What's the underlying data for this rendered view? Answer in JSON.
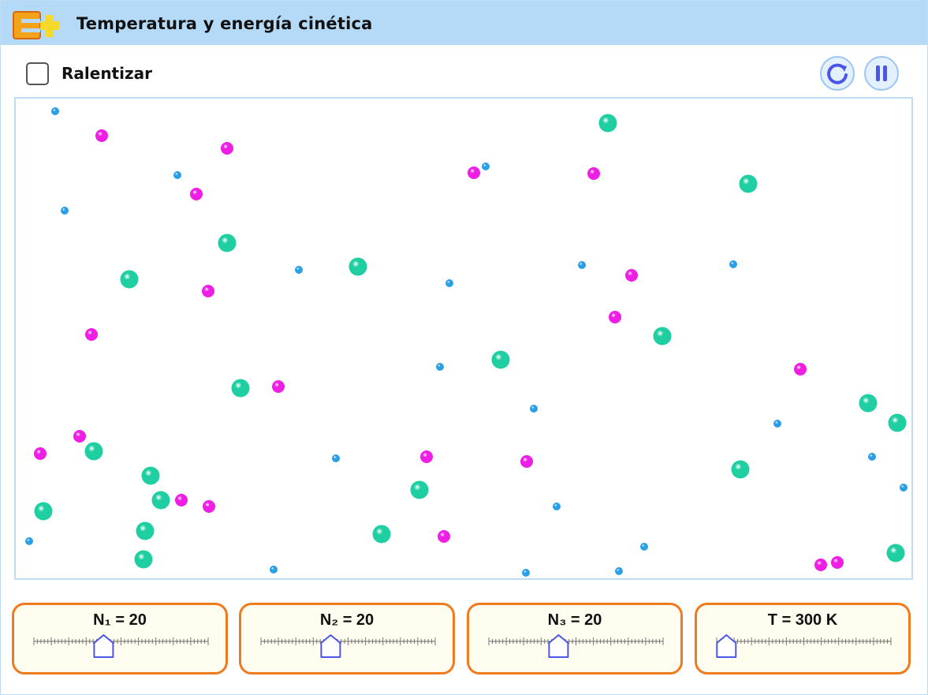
{
  "app": {
    "title": "Temperatura y energía cinética",
    "logo_icon": "e-plus-logo-icon"
  },
  "controls": {
    "slow_label": "Ralentizar",
    "slow_checked": false,
    "reset_icon": "reset-icon",
    "pause_icon": "pause-icon"
  },
  "colors": {
    "accent_blue": "#4a56e6",
    "panel_border": "#f07a1e",
    "header_bg": "#b5daf8",
    "species_small": "#2b9fe6",
    "species_medium": "#ee1ee4",
    "species_large": "#1fcfa1"
  },
  "sliders": [
    {
      "id": "n1",
      "label": "N₁ = 20",
      "value": 20,
      "min": 0,
      "max": 50
    },
    {
      "id": "n2",
      "label": "N₂ = 20",
      "value": 20,
      "min": 0,
      "max": 50
    },
    {
      "id": "n3",
      "label": "N₃ = 20",
      "value": 20,
      "min": 0,
      "max": 50
    },
    {
      "id": "t",
      "label": "T = 300 K",
      "value": 300,
      "min": 200,
      "max": 2000
    }
  ],
  "species": [
    {
      "name": "small",
      "color": "#2b9fe6",
      "count": 20
    },
    {
      "name": "medium",
      "color": "#ee1ee4",
      "count": 20
    },
    {
      "name": "large",
      "color": "#1fcfa1",
      "count": 20
    }
  ]
}
